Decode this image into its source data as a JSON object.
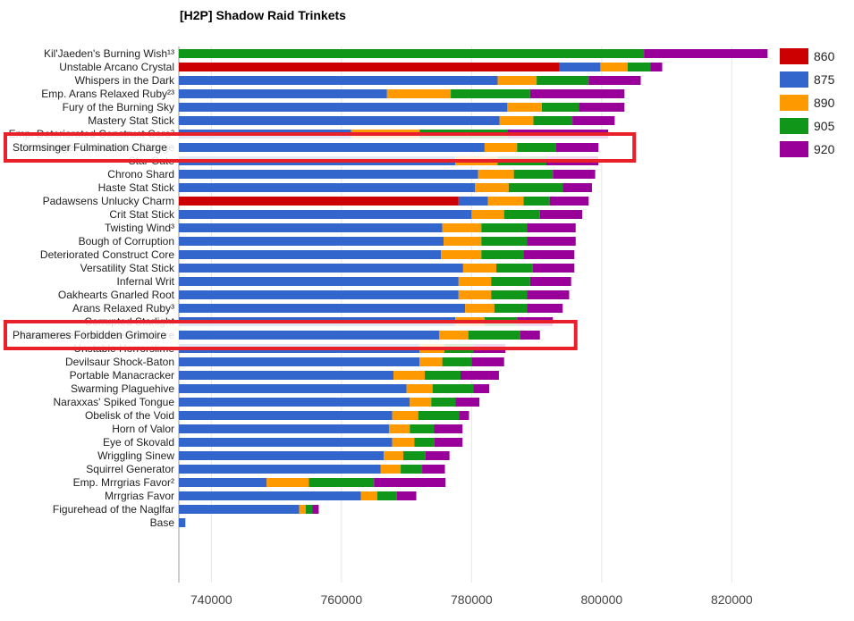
{
  "chart_data": {
    "type": "bar",
    "orientation": "horizontal",
    "stacked": true,
    "title": "[H2P] Shadow Raid Trinkets",
    "xlabel": "",
    "ylabel": "",
    "xlim": [
      735000,
      826000
    ],
    "x_ticks": [
      740000,
      760000,
      780000,
      800000,
      820000
    ],
    "legend_position": "right",
    "series_colors": {
      "860": "#cc0000",
      "875": "#3366cc",
      "890": "#ff9900",
      "905": "#109618",
      "920": "#990099"
    },
    "legend": [
      "860",
      "875",
      "890",
      "905",
      "920"
    ],
    "highlighted": [
      "Stormsinger Fulmination Charge",
      "Pharameres Forbidden Grimoire"
    ],
    "rows": [
      {
        "label": "Kil'Jaeden's Burning Wish¹³",
        "segments": [
          [
            "905",
            806500
          ],
          [
            "920",
            825500
          ]
        ]
      },
      {
        "label": "Unstable Arcano Crystal",
        "segments": [
          [
            "860",
            793500
          ],
          [
            "875",
            799800
          ],
          [
            "890",
            804000
          ],
          [
            "905",
            807500
          ],
          [
            "920",
            809300
          ]
        ]
      },
      {
        "label": "Whispers in the Dark",
        "segments": [
          [
            "875",
            784000
          ],
          [
            "890",
            790000
          ],
          [
            "905",
            798000
          ],
          [
            "920",
            806000
          ]
        ]
      },
      {
        "label": "Emp. Arans Relaxed Ruby²³",
        "segments": [
          [
            "875",
            767000
          ],
          [
            "890",
            776800
          ],
          [
            "905",
            789000
          ],
          [
            "920",
            803500
          ]
        ]
      },
      {
        "label": "Fury of the Burning Sky",
        "segments": [
          [
            "875",
            785500
          ],
          [
            "890",
            790800
          ],
          [
            "905",
            796500
          ],
          [
            "920",
            803500
          ]
        ]
      },
      {
        "label": "Mastery Stat Stick",
        "segments": [
          [
            "875",
            784300
          ],
          [
            "890",
            789500
          ],
          [
            "905",
            795500
          ],
          [
            "920",
            802000
          ]
        ]
      },
      {
        "label": "Emp. Deteriorated Construct Core²",
        "segments": [
          [
            "875",
            761500
          ],
          [
            "890",
            772000
          ],
          [
            "905",
            785500
          ],
          [
            "920",
            801000
          ]
        ]
      },
      {
        "label": "Stormsinger Fulmination Charge",
        "segments": [
          [
            "875",
            782000
          ],
          [
            "890",
            787000
          ],
          [
            "905",
            793000
          ],
          [
            "920",
            799500
          ]
        ]
      },
      {
        "label": "Star Gate",
        "segments": [
          [
            "875",
            777500
          ],
          [
            "890",
            784000
          ],
          [
            "905",
            791500
          ],
          [
            "920",
            799500
          ]
        ]
      },
      {
        "label": "Chrono Shard",
        "segments": [
          [
            "875",
            781000
          ],
          [
            "890",
            786500
          ],
          [
            "905",
            792500
          ],
          [
            "920",
            799000
          ]
        ]
      },
      {
        "label": "Haste Stat Stick",
        "segments": [
          [
            "875",
            780500
          ],
          [
            "890",
            785700
          ],
          [
            "905",
            794000
          ],
          [
            "920",
            798500
          ]
        ]
      },
      {
        "label": "Padawsens Unlucky Charm",
        "segments": [
          [
            "860",
            778000
          ],
          [
            "875",
            782500
          ],
          [
            "890",
            788000
          ],
          [
            "905",
            792000
          ],
          [
            "920",
            798000
          ]
        ]
      },
      {
        "label": "Crit Stat Stick",
        "segments": [
          [
            "875",
            780000
          ],
          [
            "890",
            785000
          ],
          [
            "905",
            790500
          ],
          [
            "920",
            797000
          ]
        ]
      },
      {
        "label": "Twisting Wind³",
        "segments": [
          [
            "875",
            775500
          ],
          [
            "890",
            781500
          ],
          [
            "905",
            788500
          ],
          [
            "920",
            796000
          ]
        ]
      },
      {
        "label": "Bough of Corruption",
        "segments": [
          [
            "875",
            775700
          ],
          [
            "890",
            781500
          ],
          [
            "905",
            788500
          ],
          [
            "920",
            796000
          ]
        ]
      },
      {
        "label": "Deteriorated Construct Core",
        "segments": [
          [
            "875",
            775300
          ],
          [
            "890",
            781500
          ],
          [
            "905",
            788000
          ],
          [
            "920",
            795800
          ]
        ]
      },
      {
        "label": "Versatility Stat Stick",
        "segments": [
          [
            "875",
            778700
          ],
          [
            "890",
            783800
          ],
          [
            "905",
            789400
          ],
          [
            "920",
            795800
          ]
        ]
      },
      {
        "label": "Infernal Writ",
        "segments": [
          [
            "875",
            778000
          ],
          [
            "890",
            783000
          ],
          [
            "905",
            789000
          ],
          [
            "920",
            795300
          ]
        ]
      },
      {
        "label": "Oakhearts Gnarled Root",
        "segments": [
          [
            "875",
            778000
          ],
          [
            "890",
            783000
          ],
          [
            "905",
            788500
          ],
          [
            "920",
            795000
          ]
        ]
      },
      {
        "label": "Arans Relaxed Ruby³",
        "segments": [
          [
            "875",
            779000
          ],
          [
            "890",
            783500
          ],
          [
            "905",
            788500
          ],
          [
            "920",
            794000
          ]
        ]
      },
      {
        "label": "Corrupted Starlight",
        "segments": [
          [
            "875",
            777500
          ],
          [
            "890",
            782000
          ],
          [
            "905",
            787000
          ],
          [
            "920",
            792500
          ]
        ]
      },
      {
        "label": "Pharameres Forbidden Grimoire",
        "segments": [
          [
            "875",
            775000
          ],
          [
            "890",
            779500
          ],
          [
            "905",
            787500
          ],
          [
            "920",
            790500
          ]
        ]
      },
      {
        "label": "Unstable Horrorslime",
        "segments": [
          [
            "875",
            772000
          ],
          [
            "890",
            775800
          ],
          [
            "905",
            780300
          ],
          [
            "920",
            785200
          ]
        ]
      },
      {
        "label": "Devilsaur Shock-Baton",
        "segments": [
          [
            "875",
            772000
          ],
          [
            "890",
            775500
          ],
          [
            "905",
            780000
          ],
          [
            "920",
            785000
          ]
        ]
      },
      {
        "label": "Portable Manacracker",
        "segments": [
          [
            "875",
            768000
          ],
          [
            "890",
            772800
          ],
          [
            "905",
            778300
          ],
          [
            "920",
            784200
          ]
        ]
      },
      {
        "label": "Swarming Plaguehive",
        "segments": [
          [
            "875",
            770000
          ],
          [
            "890",
            774000
          ],
          [
            "905",
            780300
          ],
          [
            "920",
            782700
          ]
        ]
      },
      {
        "label": "Naraxxas' Spiked Tongue",
        "segments": [
          [
            "875",
            770500
          ],
          [
            "890",
            773800
          ],
          [
            "905",
            777500
          ],
          [
            "920",
            781200
          ]
        ]
      },
      {
        "label": "Obelisk of the Void",
        "segments": [
          [
            "875",
            767800
          ],
          [
            "890",
            771800
          ],
          [
            "905",
            778100
          ],
          [
            "920",
            779600
          ]
        ]
      },
      {
        "label": "Horn of Valor",
        "segments": [
          [
            "875",
            767300
          ],
          [
            "890",
            770500
          ],
          [
            "905",
            774200
          ],
          [
            "920",
            778600
          ]
        ]
      },
      {
        "label": "Eye of Skovald",
        "segments": [
          [
            "875",
            767800
          ],
          [
            "890",
            771200
          ],
          [
            "905",
            774300
          ],
          [
            "920",
            778600
          ]
        ]
      },
      {
        "label": "Wriggling Sinew",
        "segments": [
          [
            "875",
            766500
          ],
          [
            "890",
            769500
          ],
          [
            "905",
            772900
          ],
          [
            "920",
            776600
          ]
        ]
      },
      {
        "label": "Squirrel Generator",
        "segments": [
          [
            "875",
            766000
          ],
          [
            "890",
            769100
          ],
          [
            "905",
            772400
          ],
          [
            "920",
            775900
          ]
        ]
      },
      {
        "label": "Emp. Mrrgrias Favor²",
        "segments": [
          [
            "875",
            748500
          ],
          [
            "890",
            755000
          ],
          [
            "905",
            765000
          ],
          [
            "920",
            776000
          ]
        ]
      },
      {
        "label": "Mrrgrias Favor",
        "segments": [
          [
            "875",
            763000
          ],
          [
            "890",
            765500
          ],
          [
            "905",
            768500
          ],
          [
            "920",
            771500
          ]
        ]
      },
      {
        "label": "Figurehead of the Naglfar",
        "segments": [
          [
            "875",
            753500
          ],
          [
            "890",
            754500
          ],
          [
            "905",
            755500
          ],
          [
            "920",
            756500
          ]
        ]
      },
      {
        "label": "Base",
        "segments": [
          [
            "875",
            736000
          ]
        ]
      }
    ]
  }
}
